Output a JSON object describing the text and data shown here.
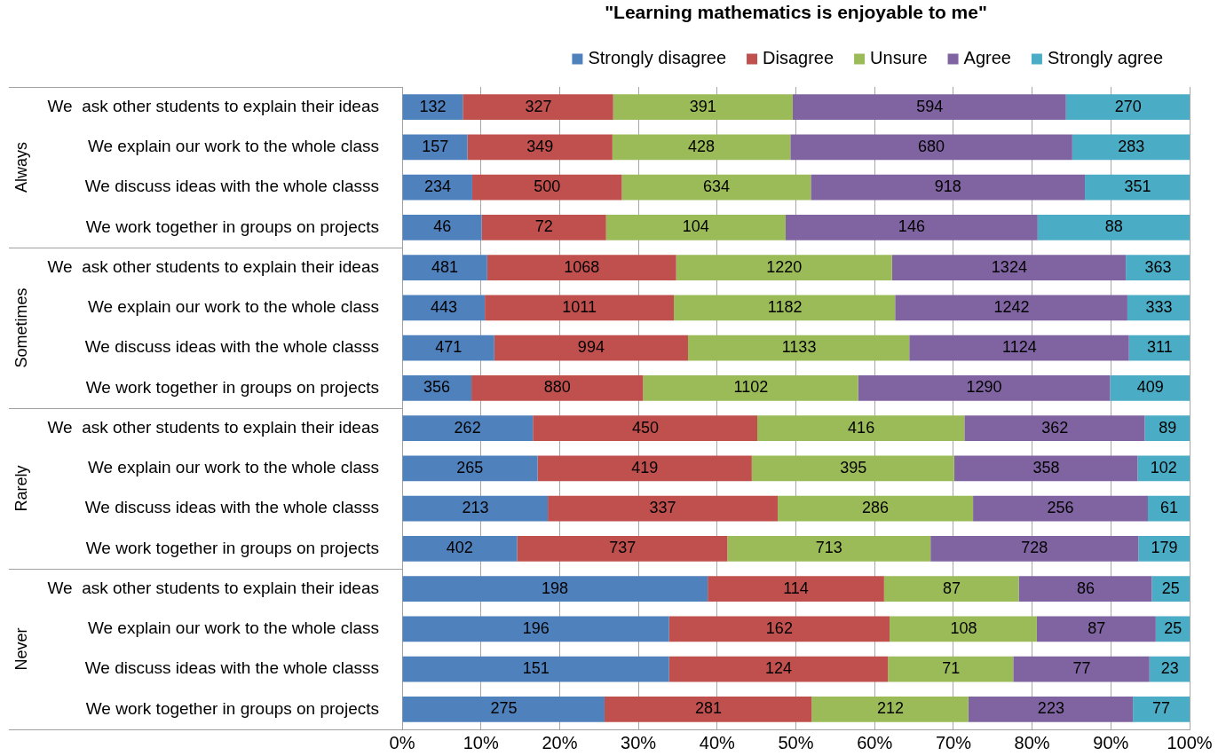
{
  "chart_data": [
    {
      "type": "bar",
      "orientation": "horizontal",
      "stacked": true,
      "title": "\"Learning mathematics is enjoyable to me\"",
      "ylabel": "Always",
      "categories": [
        "We  ask other students to explain their ideas",
        "We explain our work to the whole class",
        "We discuss ideas with the whole classs",
        "We work together in groups on projects"
      ],
      "series": [
        {
          "name": "Strongly disagree",
          "color": "#4f81bd",
          "values": [
            7.7,
            8.3,
            8.9,
            10.1
          ]
        },
        {
          "name": "Disagree",
          "color": "#c0504d",
          "values": [
            19.1,
            18.4,
            19.0,
            15.8
          ]
        },
        {
          "name": "Unsure",
          "color": "#9bbb59",
          "values": [
            22.8,
            22.6,
            24.0,
            22.8
          ]
        },
        {
          "name": "Agree",
          "color": "#8064a2",
          "values": [
            34.7,
            35.8,
            34.8,
            32.0
          ]
        },
        {
          "name": "Strongly agree",
          "color": "#4bacc6",
          "values": [
            15.7,
            14.9,
            13.3,
            19.3
          ]
        }
      ],
      "xlim": [
        0,
        100
      ],
      "xticks": [
        {
          "value": 0,
          "label": null
        },
        {
          "value": 10,
          "label": null
        },
        {
          "value": 20,
          "label": null
        },
        {
          "value": 30,
          "label": null
        },
        {
          "value": 40,
          "label": null
        },
        {
          "value": 50,
          "label": null
        },
        {
          "value": 60,
          "label": null
        },
        {
          "value": 70,
          "label": null
        },
        {
          "value": 80,
          "label": null
        },
        {
          "value": 90,
          "label": null
        },
        {
          "value": 100,
          "label": null
        }
      ],
      "tick_labels": "y",
      "grid": "x",
      "legend": "top right",
      "annotations": [
        {
          "text": "132",
          "x": 3.9,
          "y": "We  ask other students to explain their ideas"
        },
        {
          "text": "327",
          "x": 17.3,
          "y": "We  ask other students to explain their ideas"
        },
        {
          "text": "391",
          "x": 38.2,
          "y": "We  ask other students to explain their ideas"
        },
        {
          "text": "594",
          "x": 67.0,
          "y": "We  ask other students to explain their ideas"
        },
        {
          "text": "270",
          "x": 92.2,
          "y": "We  ask other students to explain their ideas"
        },
        {
          "text": "157",
          "x": 4.2,
          "y": "We explain our work to the whole class"
        },
        {
          "text": "349",
          "x": 17.5,
          "y": "We explain our work to the whole class"
        },
        {
          "text": "428",
          "x": 38.0,
          "y": "We explain our work to the whole class"
        },
        {
          "text": "680",
          "x": 67.2,
          "y": "We explain our work to the whole class"
        },
        {
          "text": "283",
          "x": 92.6,
          "y": "We explain our work to the whole class"
        },
        {
          "text": "234",
          "x": 4.5,
          "y": "We discuss ideas with the whole classs"
        },
        {
          "text": "500",
          "x": 18.4,
          "y": "We discuss ideas with the whole classs"
        },
        {
          "text": "634",
          "x": 39.9,
          "y": "We discuss ideas with the whole classs"
        },
        {
          "text": "918",
          "x": 69.3,
          "y": "We discuss ideas with the whole classs"
        },
        {
          "text": "351",
          "x": 93.4,
          "y": "We discuss ideas with the whole classs"
        },
        {
          "text": "46",
          "x": 5.1,
          "y": "We work together in groups on projects"
        },
        {
          "text": "72",
          "x": 18.0,
          "y": "We work together in groups on projects"
        },
        {
          "text": "104",
          "x": 37.3,
          "y": "We work together in groups on projects"
        },
        {
          "text": "146",
          "x": 64.7,
          "y": "We work together in groups on projects"
        },
        {
          "text": "88",
          "x": 90.4,
          "y": "We work together in groups on projects"
        }
      ]
    },
    {
      "type": "bar",
      "orientation": "horizontal",
      "stacked": true,
      "ylabel": "Sometimes",
      "categories": [
        "We  ask other students to explain their ideas",
        "We explain our work to the whole class",
        "We discuss ideas with the whole classs",
        "We work together in groups on projects"
      ],
      "series": [
        {
          "color": "#4f81bd",
          "values": [
            10.8,
            10.5,
            11.7,
            8.8
          ]
        },
        {
          "color": "#c0504d",
          "values": [
            24.0,
            24.0,
            24.6,
            21.8
          ]
        },
        {
          "color": "#9bbb59",
          "values": [
            27.4,
            28.1,
            28.1,
            27.3
          ]
        },
        {
          "color": "#8064a2",
          "values": [
            29.7,
            29.5,
            27.9,
            32.0
          ]
        },
        {
          "color": "#4bacc6",
          "values": [
            8.1,
            7.9,
            7.7,
            10.1
          ]
        }
      ],
      "xlim": [
        0,
        100
      ],
      "xticks": [
        {
          "value": 0,
          "label": null
        },
        {
          "value": 10,
          "label": null
        },
        {
          "value": 20,
          "label": null
        },
        {
          "value": 30,
          "label": null
        },
        {
          "value": 40,
          "label": null
        },
        {
          "value": 50,
          "label": null
        },
        {
          "value": 60,
          "label": null
        },
        {
          "value": 70,
          "label": null
        },
        {
          "value": 80,
          "label": null
        },
        {
          "value": 90,
          "label": null
        },
        {
          "value": 100,
          "label": null
        }
      ],
      "tick_labels": "y",
      "grid": "x",
      "annotations": [
        {
          "text": "481",
          "x": 5.4,
          "y": "We  ask other students to explain their ideas"
        },
        {
          "text": "1068",
          "x": 22.8,
          "y": "We  ask other students to explain their ideas"
        },
        {
          "text": "1220",
          "x": 48.5,
          "y": "We  ask other students to explain their ideas"
        },
        {
          "text": "1324",
          "x": 77.1,
          "y": "We  ask other students to explain their ideas"
        },
        {
          "text": "363",
          "x": 96.0,
          "y": "We  ask other students to explain their ideas"
        },
        {
          "text": "443",
          "x": 5.3,
          "y": "We explain our work to the whole class"
        },
        {
          "text": "1011",
          "x": 22.5,
          "y": "We explain our work to the whole class"
        },
        {
          "text": "1182",
          "x": 48.6,
          "y": "We explain our work to the whole class"
        },
        {
          "text": "1242",
          "x": 77.4,
          "y": "We explain our work to the whole class"
        },
        {
          "text": "333",
          "x": 96.1,
          "y": "We explain our work to the whole class"
        },
        {
          "text": "471",
          "x": 5.9,
          "y": "We discuss ideas with the whole classs"
        },
        {
          "text": "994",
          "x": 24.0,
          "y": "We discuss ideas with the whole classs"
        },
        {
          "text": "1133",
          "x": 50.4,
          "y": "We discuss ideas with the whole classs"
        },
        {
          "text": "1124",
          "x": 78.4,
          "y": "We discuss ideas with the whole classs"
        },
        {
          "text": "311",
          "x": 96.2,
          "y": "We discuss ideas with the whole classs"
        },
        {
          "text": "356",
          "x": 4.4,
          "y": "We work together in groups on projects"
        },
        {
          "text": "880",
          "x": 19.7,
          "y": "We work together in groups on projects"
        },
        {
          "text": "1102",
          "x": 44.3,
          "y": "We work together in groups on projects"
        },
        {
          "text": "1290",
          "x": 73.9,
          "y": "We work together in groups on projects"
        },
        {
          "text": "409",
          "x": 95.0,
          "y": "We work together in groups on projects"
        }
      ]
    },
    {
      "type": "bar",
      "orientation": "horizontal",
      "stacked": true,
      "ylabel": "Rarely",
      "categories": [
        "We  ask other students to explain their ideas",
        "We explain our work to the whole class",
        "We discuss ideas with the whole classs",
        "We work together in groups on projects"
      ],
      "series": [
        {
          "color": "#4f81bd",
          "values": [
            16.6,
            17.2,
            18.5,
            14.6
          ]
        },
        {
          "color": "#c0504d",
          "values": [
            28.5,
            27.2,
            29.2,
            26.7
          ]
        },
        {
          "color": "#9bbb59",
          "values": [
            26.3,
            25.7,
            24.8,
            25.8
          ]
        },
        {
          "color": "#8064a2",
          "values": [
            22.9,
            23.3,
            22.2,
            26.4
          ]
        },
        {
          "color": "#4bacc6",
          "values": [
            5.7,
            6.6,
            5.3,
            6.5
          ]
        }
      ],
      "xlim": [
        0,
        100
      ],
      "xticks": [
        {
          "value": 0,
          "label": null
        },
        {
          "value": 10,
          "label": null
        },
        {
          "value": 20,
          "label": null
        },
        {
          "value": 30,
          "label": null
        },
        {
          "value": 40,
          "label": null
        },
        {
          "value": 50,
          "label": null
        },
        {
          "value": 60,
          "label": null
        },
        {
          "value": 70,
          "label": null
        },
        {
          "value": 80,
          "label": null
        },
        {
          "value": 90,
          "label": null
        },
        {
          "value": 100,
          "label": null
        }
      ],
      "tick_labels": "y",
      "grid": "x",
      "annotations": [
        {
          "text": "262",
          "x": 8.3,
          "y": "We  ask other students to explain their ideas"
        },
        {
          "text": "450",
          "x": 30.9,
          "y": "We  ask other students to explain their ideas"
        },
        {
          "text": "416",
          "x": 58.3,
          "y": "We  ask other students to explain their ideas"
        },
        {
          "text": "362",
          "x": 82.9,
          "y": "We  ask other students to explain their ideas"
        },
        {
          "text": "89",
          "x": 97.2,
          "y": "We  ask other students to explain their ideas"
        },
        {
          "text": "265",
          "x": 8.6,
          "y": "We explain our work to the whole class"
        },
        {
          "text": "419",
          "x": 30.8,
          "y": "We explain our work to the whole class"
        },
        {
          "text": "395",
          "x": 57.3,
          "y": "We explain our work to the whole class"
        },
        {
          "text": "358",
          "x": 81.8,
          "y": "We explain our work to the whole class"
        },
        {
          "text": "102",
          "x": 96.7,
          "y": "We explain our work to the whole class"
        },
        {
          "text": "213",
          "x": 9.3,
          "y": "We discuss ideas with the whole classs"
        },
        {
          "text": "337",
          "x": 33.1,
          "y": "We discuss ideas with the whole classs"
        },
        {
          "text": "286",
          "x": 60.1,
          "y": "We discuss ideas with the whole classs"
        },
        {
          "text": "256",
          "x": 83.6,
          "y": "We discuss ideas with the whole classs"
        },
        {
          "text": "61",
          "x": 97.4,
          "y": "We discuss ideas with the whole classs"
        },
        {
          "text": "402",
          "x": 7.3,
          "y": "We work together in groups on projects"
        },
        {
          "text": "737",
          "x": 28.0,
          "y": "We work together in groups on projects"
        },
        {
          "text": "713",
          "x": 54.2,
          "y": "We work together in groups on projects"
        },
        {
          "text": "728",
          "x": 80.3,
          "y": "We work together in groups on projects"
        },
        {
          "text": "179",
          "x": 96.8,
          "y": "We work together in groups on projects"
        }
      ]
    },
    {
      "type": "bar",
      "orientation": "horizontal",
      "stacked": true,
      "ylabel": "Never",
      "categories": [
        "We  ask other students to explain their ideas",
        "We explain our work to the whole class",
        "We discuss ideas with the whole classs",
        "We work together in groups on projects"
      ],
      "series": [
        {
          "color": "#4f81bd",
          "values": [
            38.8,
            33.9,
            33.9,
            25.7
          ]
        },
        {
          "color": "#c0504d",
          "values": [
            22.4,
            28.0,
            27.8,
            26.3
          ]
        },
        {
          "color": "#9bbb59",
          "values": [
            17.1,
            18.7,
            15.9,
            19.9
          ]
        },
        {
          "color": "#8064a2",
          "values": [
            16.9,
            15.1,
            17.3,
            20.9
          ]
        },
        {
          "color": "#4bacc6",
          "values": [
            4.8,
            4.3,
            5.1,
            7.2
          ]
        }
      ],
      "xlim": [
        0,
        100
      ],
      "xticks": [
        {
          "value": 0,
          "label": "0%"
        },
        {
          "value": 10,
          "label": "10%"
        },
        {
          "value": 20,
          "label": "20%"
        },
        {
          "value": 30,
          "label": "30%"
        },
        {
          "value": 40,
          "label": "40%"
        },
        {
          "value": 50,
          "label": "50%"
        },
        {
          "value": 60,
          "label": "60%"
        },
        {
          "value": 70,
          "label": "70%"
        },
        {
          "value": 80,
          "label": "80%"
        },
        {
          "value": 90,
          "label": "90%"
        },
        {
          "value": 100,
          "label": "100%"
        }
      ],
      "grid": "x",
      "annotations": [
        {
          "text": "198",
          "x": 19.4,
          "y": "We  ask other students to explain their ideas"
        },
        {
          "text": "114",
          "x": 50.0,
          "y": "We  ask other students to explain their ideas"
        },
        {
          "text": "87",
          "x": 69.8,
          "y": "We  ask other students to explain their ideas"
        },
        {
          "text": "86",
          "x": 86.8,
          "y": "We  ask other students to explain their ideas"
        },
        {
          "text": "25",
          "x": 97.6,
          "y": "We  ask other students to explain their ideas"
        },
        {
          "text": "196",
          "x": 17.0,
          "y": "We explain our work to the whole class"
        },
        {
          "text": "162",
          "x": 47.9,
          "y": "We explain our work to the whole class"
        },
        {
          "text": "108",
          "x": 71.3,
          "y": "We explain our work to the whole class"
        },
        {
          "text": "87",
          "x": 88.2,
          "y": "We explain our work to the whole class"
        },
        {
          "text": "25",
          "x": 97.9,
          "y": "We explain our work to the whole class"
        },
        {
          "text": "151",
          "x": 17.0,
          "y": "We discuss ideas with the whole classs"
        },
        {
          "text": "124",
          "x": 47.8,
          "y": "We discuss ideas with the whole classs"
        },
        {
          "text": "71",
          "x": 69.7,
          "y": "We discuss ideas with the whole classs"
        },
        {
          "text": "77",
          "x": 86.3,
          "y": "We discuss ideas with the whole classs"
        },
        {
          "text": "23",
          "x": 97.5,
          "y": "We discuss ideas with the whole classs"
        },
        {
          "text": "275",
          "x": 12.9,
          "y": "We work together in groups on projects"
        },
        {
          "text": "281",
          "x": 38.9,
          "y": "We work together in groups on projects"
        },
        {
          "text": "212",
          "x": 62.0,
          "y": "We work together in groups on projects"
        },
        {
          "text": "223",
          "x": 82.4,
          "y": "We work together in groups on projects"
        },
        {
          "text": "77",
          "x": 96.4,
          "y": "We work together in groups on projects"
        }
      ]
    }
  ]
}
